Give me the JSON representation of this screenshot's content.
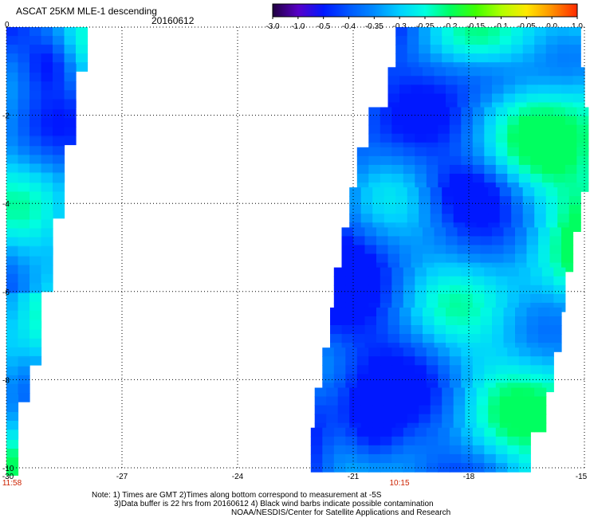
{
  "chart_data": {
    "type": "heatmap",
    "title": "ASCAT 25KM MLE-1 descending",
    "date": "20160612",
    "colorbar": {
      "ticks": [
        "-3.0",
        "-1.0",
        "-0.5",
        "-0.4",
        "-0.35",
        "-0.3",
        "-0.25",
        "-0.2",
        "-0.15",
        "-0.1",
        "-0.05",
        "0.0",
        "1.0"
      ],
      "colors": [
        "#200040",
        "#5800c8",
        "#0018ff",
        "#0058ff",
        "#008cff",
        "#00d0ff",
        "#00ffe0",
        "#00ff60",
        "#40ff00",
        "#b0ff00",
        "#ffe800",
        "#ff9000",
        "#ff2800"
      ]
    },
    "x_ticks": [
      "-30",
      "-27",
      "-24",
      "-21",
      "-18",
      "-15"
    ],
    "xlim": [
      -30,
      -15
    ],
    "y_ticks": [
      "0",
      "-2",
      "-4",
      "-6",
      "-8",
      "-10"
    ],
    "ylim": [
      -10,
      0
    ],
    "time_labels": [
      {
        "text": "11:58",
        "x": -30
      },
      {
        "text": "10:15",
        "x": -19.8
      }
    ],
    "swaths": [
      {
        "name": "west",
        "rows": [
          [
            -30,
            -28.0
          ],
          [
            -30,
            -28.3
          ],
          [
            -30,
            -28.4
          ],
          [
            -30,
            -28.5
          ],
          [
            -30,
            -28.6
          ],
          [
            -30,
            -28.8
          ],
          [
            -30,
            -29.0
          ],
          [
            -30,
            -29.1
          ],
          [
            -30,
            -29.3
          ],
          [
            -30,
            -29.5
          ],
          [
            -30,
            -29.7
          ],
          [
            -30,
            -29.8
          ]
        ]
      },
      {
        "name": "east",
        "rows": [
          [
            -19.9,
            -15.1
          ],
          [
            -20.1,
            -15.1
          ],
          [
            -20.6,
            -15.1
          ],
          [
            -20.9,
            -15.1
          ],
          [
            -21.1,
            -15.2
          ],
          [
            -21.3,
            -15.3
          ],
          [
            -21.5,
            -15.5
          ],
          [
            -21.6,
            -15.7
          ],
          [
            -21.8,
            -15.9
          ],
          [
            -22.0,
            -16.2
          ],
          [
            -22.1,
            -16.6
          ]
        ]
      }
    ],
    "value_range": [
      -0.4,
      -0.15
    ],
    "grid": true
  },
  "notes": {
    "line1": "Note: 1) Times are GMT 2)Times along bottom correspond to measurement at -5S",
    "line2": "3)Data buffer is 22 hrs from 20160612 4) Black wind barbs indicate possible contamination",
    "line3": "NOAA/NESDIS/Center for Satellite Applications and Research"
  }
}
